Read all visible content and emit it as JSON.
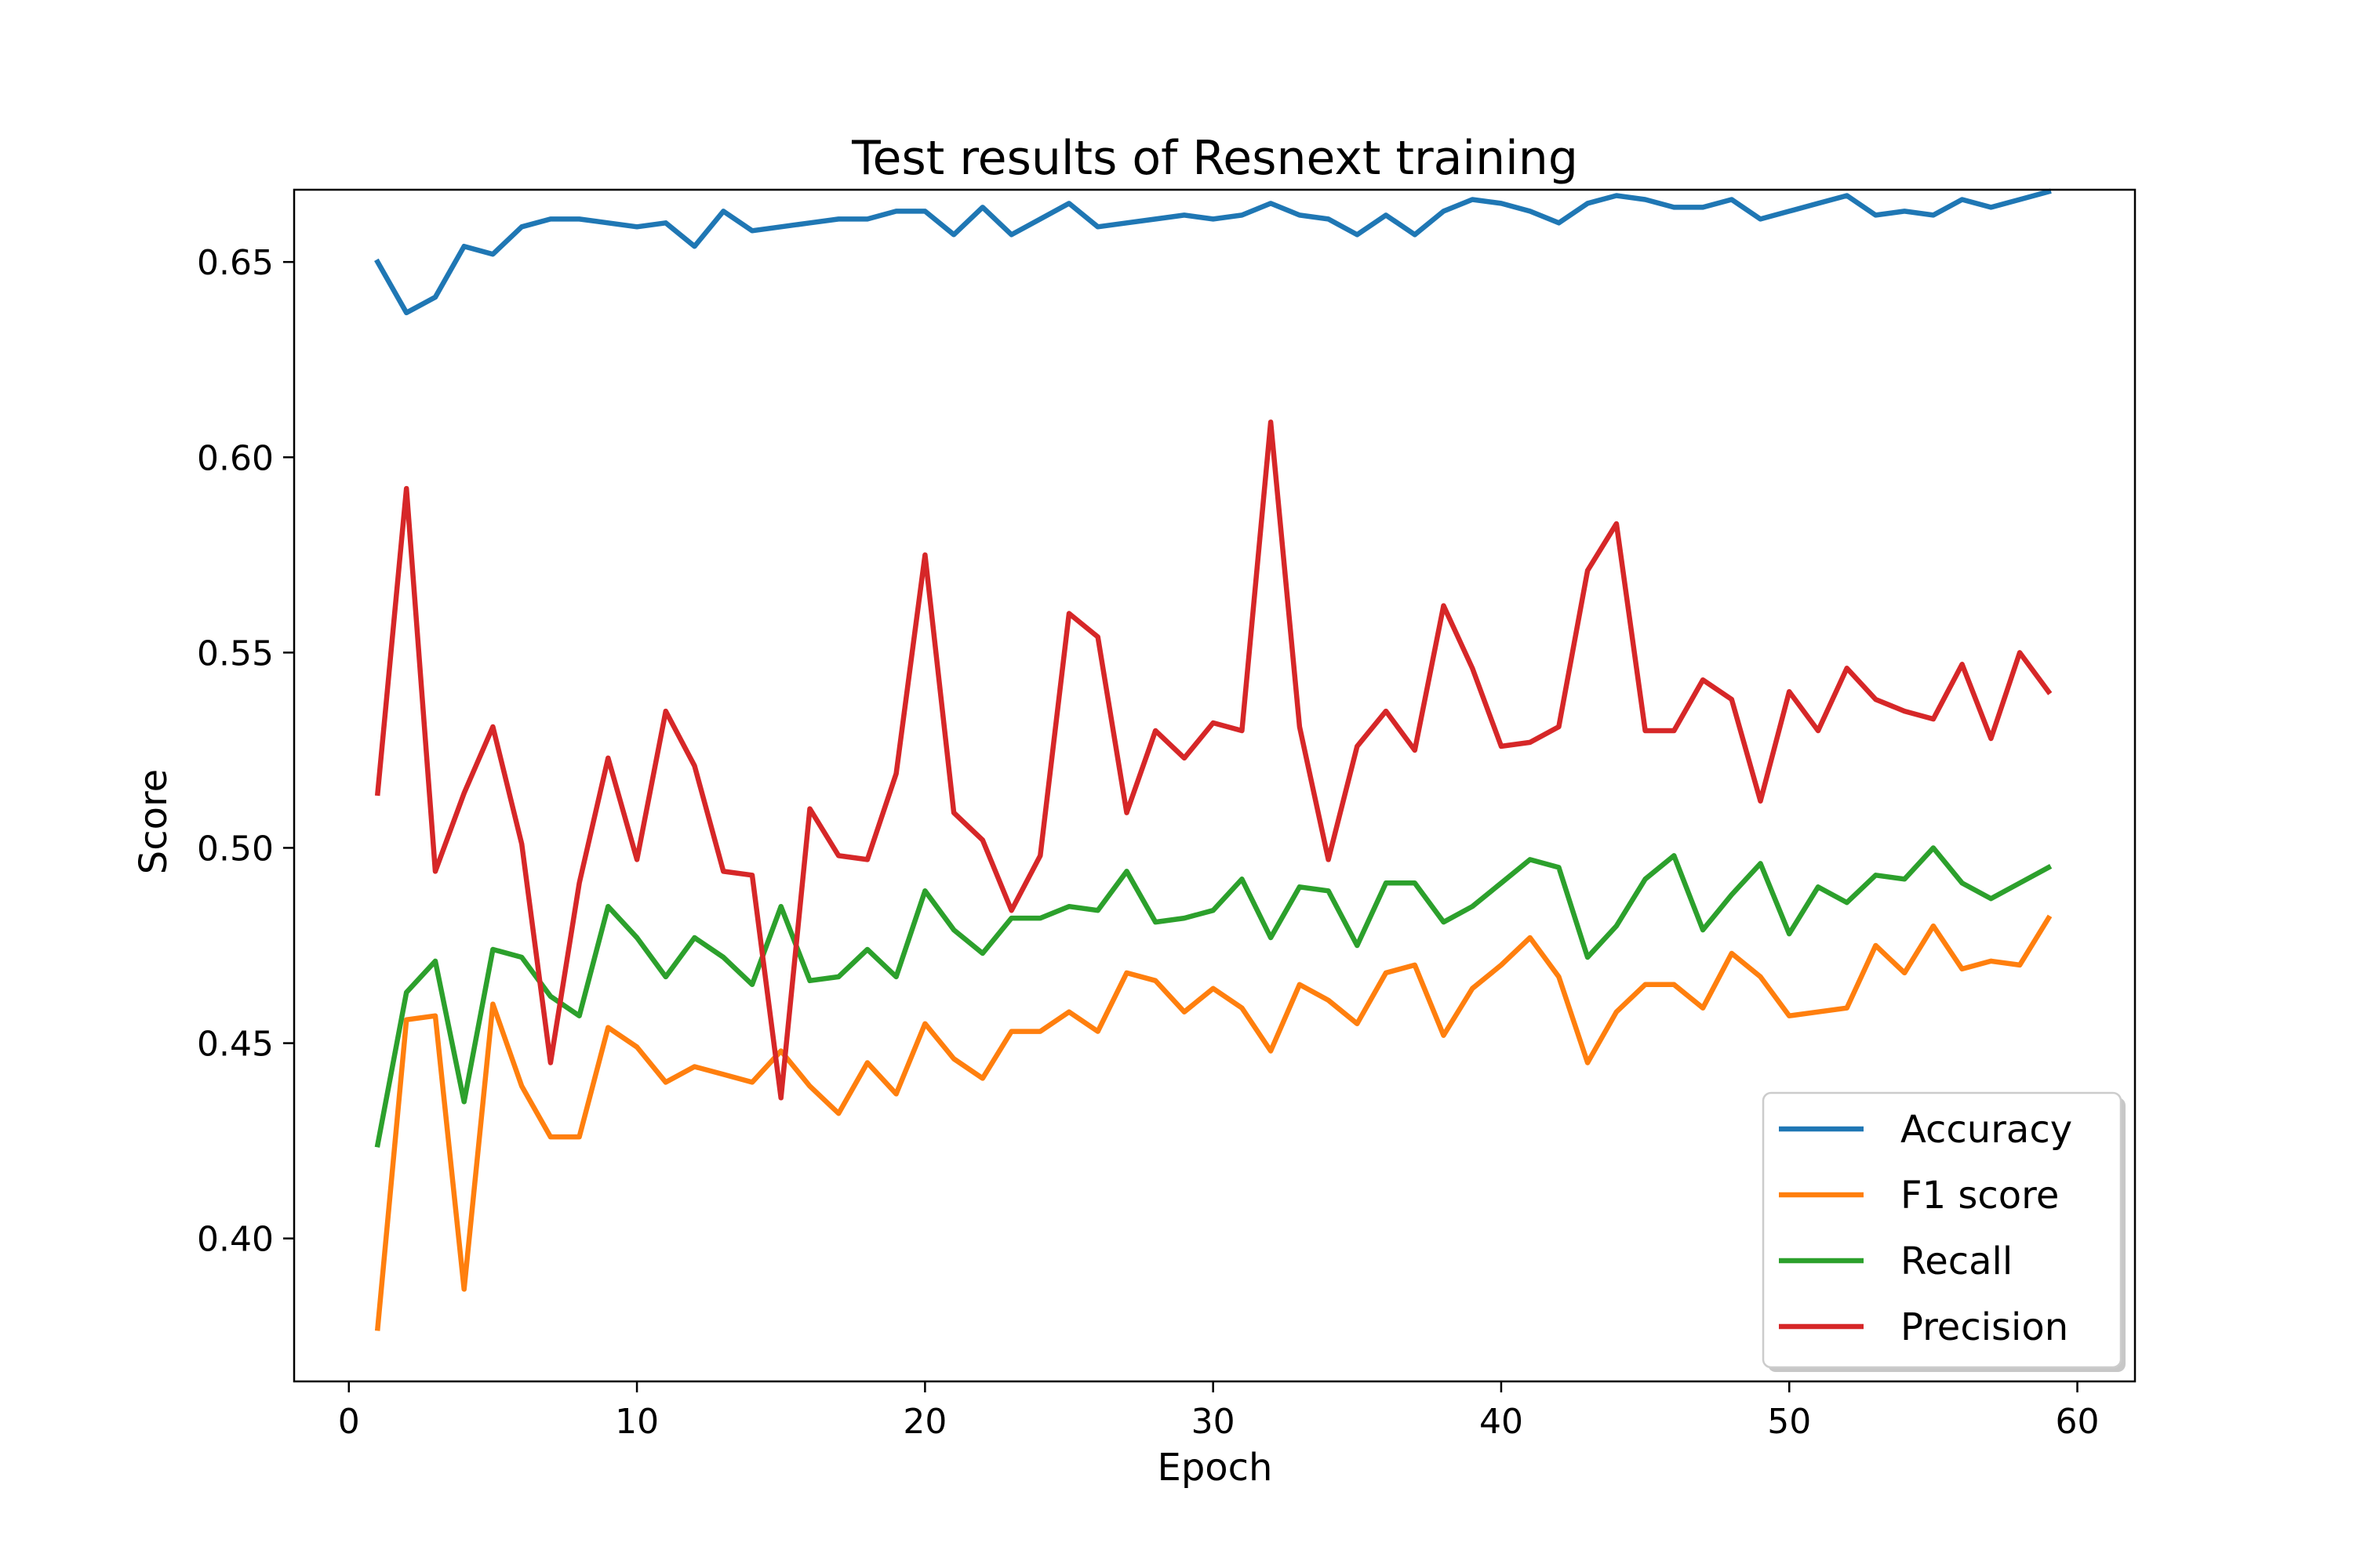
{
  "chart_data": {
    "type": "line",
    "title": "Test results of Resnext training",
    "xlabel": "Epoch",
    "ylabel": "Score",
    "xlim": [
      -1.9,
      62.0
    ],
    "ylim": [
      0.3634,
      0.6685
    ],
    "xticks": [
      0,
      10,
      20,
      30,
      40,
      50,
      60
    ],
    "xtick_labels": [
      "0",
      "10",
      "20",
      "30",
      "40",
      "50",
      "60"
    ],
    "yticks": [
      0.4,
      0.45,
      0.5,
      0.55,
      0.6,
      0.65
    ],
    "ytick_labels": [
      "0.40",
      "0.45",
      "0.50",
      "0.55",
      "0.60",
      "0.65"
    ],
    "grid": false,
    "legend_position": "bottom-right",
    "x": [
      1,
      2,
      3,
      4,
      5,
      6,
      7,
      8,
      9,
      10,
      11,
      12,
      13,
      14,
      15,
      16,
      17,
      18,
      19,
      20,
      21,
      22,
      23,
      24,
      25,
      26,
      27,
      28,
      29,
      30,
      31,
      32,
      33,
      34,
      35,
      36,
      37,
      38,
      39,
      40,
      41,
      42,
      43,
      44,
      45,
      46,
      47,
      48,
      49,
      50,
      51,
      52,
      53,
      54,
      55,
      56,
      57,
      58,
      59
    ],
    "series": [
      {
        "name": "Accuracy",
        "color": "#1f77b4",
        "values": [
          0.65,
          0.637,
          0.641,
          0.654,
          0.652,
          0.659,
          0.661,
          0.661,
          0.66,
          0.659,
          0.66,
          0.654,
          0.663,
          0.658,
          0.659,
          0.66,
          0.661,
          0.661,
          0.663,
          0.663,
          0.657,
          0.664,
          0.657,
          0.661,
          0.665,
          0.659,
          0.66,
          0.661,
          0.662,
          0.661,
          0.662,
          0.665,
          0.662,
          0.661,
          0.657,
          0.662,
          0.657,
          0.663,
          0.666,
          0.665,
          0.663,
          0.66,
          0.665,
          0.667,
          0.666,
          0.664,
          0.664,
          0.666,
          0.661,
          0.663,
          0.665,
          0.667,
          0.662,
          0.663,
          0.662,
          0.666,
          0.664,
          0.666,
          0.668
        ]
      },
      {
        "name": "F1 score",
        "color": "#ff7f0e",
        "values": [
          0.377,
          0.456,
          0.457,
          0.387,
          0.46,
          0.439,
          0.426,
          0.426,
          0.454,
          0.449,
          0.44,
          0.444,
          0.442,
          0.44,
          0.448,
          0.439,
          0.432,
          0.445,
          0.437,
          0.455,
          0.446,
          0.441,
          0.453,
          0.453,
          0.458,
          0.453,
          0.468,
          0.466,
          0.458,
          0.464,
          0.459,
          0.448,
          0.465,
          0.461,
          0.455,
          0.468,
          0.47,
          0.452,
          0.464,
          0.47,
          0.477,
          0.467,
          0.445,
          0.458,
          0.465,
          0.465,
          0.459,
          0.473,
          0.467,
          0.457,
          0.458,
          0.459,
          0.475,
          0.468,
          0.48,
          0.469,
          0.471,
          0.47,
          0.482
        ]
      },
      {
        "name": "Recall",
        "color": "#2ca02c",
        "values": [
          0.424,
          0.463,
          0.471,
          0.435,
          0.474,
          0.472,
          0.462,
          0.457,
          0.485,
          0.477,
          0.467,
          0.477,
          0.472,
          0.465,
          0.485,
          0.466,
          0.467,
          0.474,
          0.467,
          0.489,
          0.479,
          0.473,
          0.482,
          0.482,
          0.485,
          0.484,
          0.494,
          0.481,
          0.482,
          0.484,
          0.492,
          0.477,
          0.49,
          0.489,
          0.475,
          0.491,
          0.491,
          0.481,
          0.485,
          0.491,
          0.497,
          0.495,
          0.472,
          0.48,
          0.492,
          0.498,
          0.479,
          0.488,
          0.496,
          0.478,
          0.49,
          0.486,
          0.493,
          0.492,
          0.5,
          0.491,
          0.487,
          0.491,
          0.495
        ]
      },
      {
        "name": "Precision",
        "color": "#d62728",
        "values": [
          0.514,
          0.592,
          0.494,
          0.514,
          0.531,
          0.501,
          0.445,
          0.491,
          0.523,
          0.497,
          0.535,
          0.521,
          0.494,
          0.493,
          0.436,
          0.51,
          0.498,
          0.497,
          0.519,
          0.575,
          0.509,
          0.502,
          0.484,
          0.498,
          0.56,
          0.554,
          0.509,
          0.53,
          0.523,
          0.532,
          0.53,
          0.609,
          0.531,
          0.497,
          0.526,
          0.535,
          0.525,
          0.562,
          0.546,
          0.526,
          0.527,
          0.531,
          0.571,
          0.583,
          0.53,
          0.53,
          0.543,
          0.538,
          0.512,
          0.54,
          0.53,
          0.546,
          0.538,
          0.535,
          0.533,
          0.547,
          0.528,
          0.55,
          0.54
        ]
      }
    ]
  }
}
